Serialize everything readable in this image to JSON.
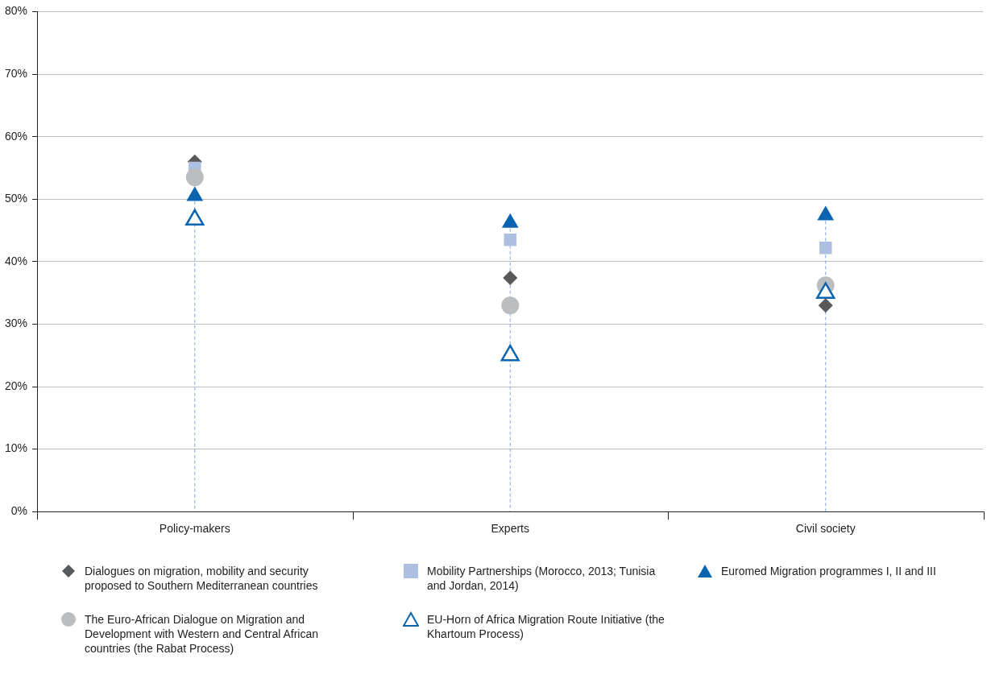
{
  "chart_data": {
    "type": "scatter",
    "categories": [
      "Policy-makers",
      "Experts",
      "Civil society"
    ],
    "series": [
      {
        "name": "Dialogues on migration, mobility and security proposed to Southern Mediterranean countries",
        "color": "#58595b",
        "marker": "diamond",
        "values": [
          56,
          37.4,
          33
        ]
      },
      {
        "name": "Mobility Partnerships (Morocco, 2013; Tunisia and Jordan, 2014)",
        "color": "#adc0e2",
        "marker": "square",
        "values": [
          55,
          43.5,
          42.2
        ]
      },
      {
        "name": "Euromed Migration programmes I, II and III",
        "color": "#0a64b0",
        "marker": "triangle",
        "values": [
          50.5,
          46.2,
          47.4
        ]
      },
      {
        "name": "The Euro-African Dialogue on Migration and Development with Western and Central African countries (the Rabat Process)",
        "color": "#bcbdbf",
        "marker": "circle",
        "values": [
          53.5,
          33,
          36.2
        ]
      },
      {
        "name": "EU-Horn of Africa Migration Route Initiative (the Khartoum Process)",
        "color": "#0a64b0",
        "marker": "triangle",
        "values": [
          46.7,
          25,
          35
        ]
      }
    ],
    "ylim": [
      0,
      80
    ],
    "yticks": [
      {
        "value": 0,
        "label": "0%"
      },
      {
        "value": 10,
        "label": "10%"
      },
      {
        "value": 20,
        "label": "20%"
      },
      {
        "value": 30,
        "label": "30%"
      },
      {
        "value": 40,
        "label": "40%"
      },
      {
        "value": 50,
        "label": "50%"
      },
      {
        "value": 60,
        "label": "60%"
      },
      {
        "value": 70,
        "label": "70%"
      },
      {
        "value": 80,
        "label": "80%"
      }
    ],
    "grid": "y",
    "legend": "bottom"
  }
}
